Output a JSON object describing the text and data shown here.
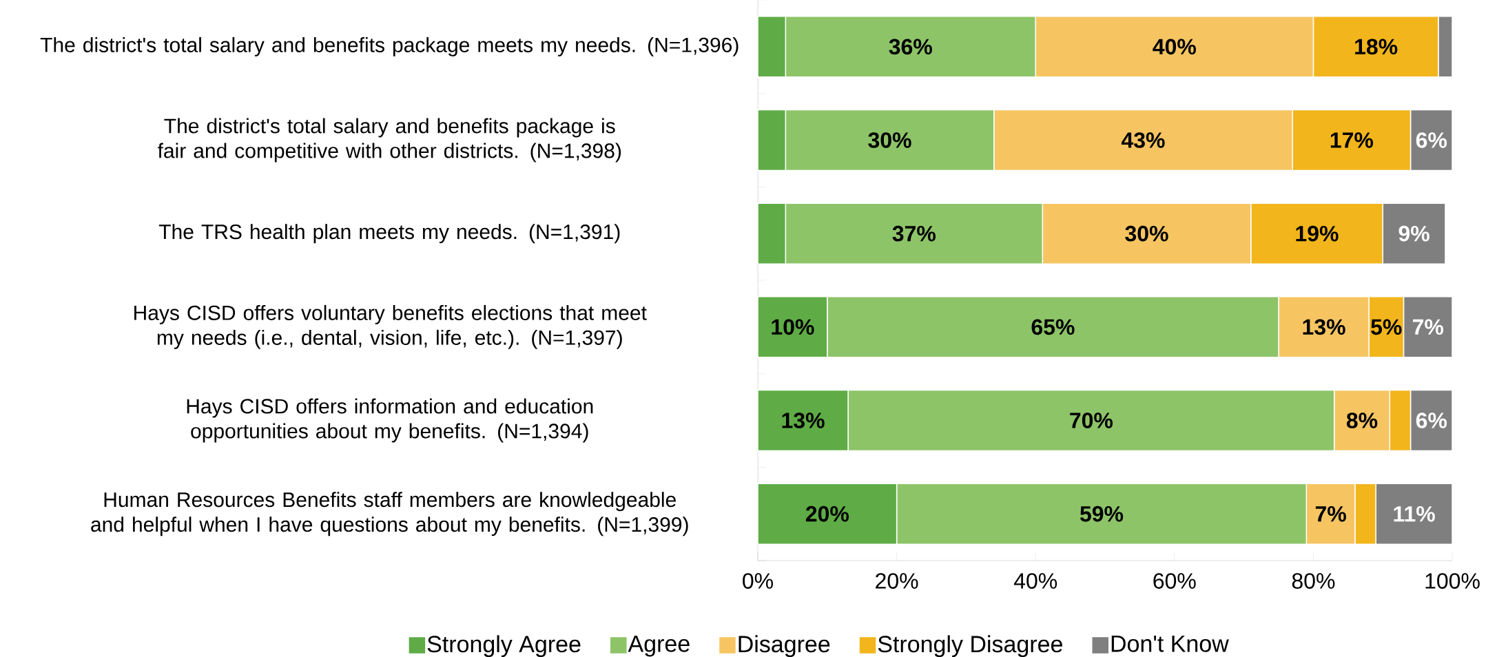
{
  "chart_data": {
    "type": "bar",
    "orientation": "horizontal",
    "stacked": true,
    "categories": [
      "The district's total salary and benefits package meets my needs. (N=1,396)",
      "The district's total salary and benefits package is fair and competitive with other districts. (N=1,398)",
      "The TRS health plan meets my needs. (N=1,391)",
      "Hays CISD offers voluntary benefits elections that meet my needs (i.e., dental, vision, life, etc.). (N=1,397)",
      "Hays CISD offers information and education opportunities about my benefits. (N=1,394)",
      "Human Resources Benefits staff members are knowledgeable and helpful when I have questions about my benefits. (N=1,399)"
    ],
    "series": [
      {
        "name": "Strongly Agree",
        "color": "#5fac46",
        "values": [
          4,
          4,
          4,
          10,
          13,
          20
        ],
        "value_labels": [
          null,
          null,
          null,
          "10%",
          "13%",
          "20%"
        ]
      },
      {
        "name": "Agree",
        "color": "#8dc468",
        "values": [
          36,
          30,
          37,
          65,
          70,
          59
        ],
        "value_labels": [
          "36%",
          "30%",
          "37%",
          "65%",
          "70%",
          "59%"
        ]
      },
      {
        "name": "Disagree",
        "color": "#f6c562",
        "values": [
          40,
          43,
          30,
          13,
          8,
          7
        ],
        "value_labels": [
          "40%",
          "43%",
          "30%",
          "13%",
          "8%",
          "7%"
        ]
      },
      {
        "name": "Strongly Disagree",
        "color": "#f2b51c",
        "values": [
          18,
          17,
          19,
          5,
          3,
          3
        ],
        "value_labels": [
          "18%",
          "17%",
          "19%",
          "5%",
          null,
          null
        ]
      },
      {
        "name": "Don't Know",
        "color": "#7f7f7f",
        "values": [
          2,
          6,
          9,
          7,
          6,
          11
        ],
        "value_labels": [
          null,
          "6%",
          "9%",
          "7%",
          "6%",
          "11%"
        ]
      }
    ],
    "xlim": [
      0,
      100
    ],
    "xticks": [
      {
        "value": 0,
        "label": "0%"
      },
      {
        "value": 20,
        "label": "20%"
      },
      {
        "value": 40,
        "label": "40%"
      },
      {
        "value": 60,
        "label": "60%"
      },
      {
        "value": 80,
        "label": "80%"
      },
      {
        "value": 100,
        "label": "100%"
      }
    ],
    "grid": false,
    "legend": "bottom"
  }
}
